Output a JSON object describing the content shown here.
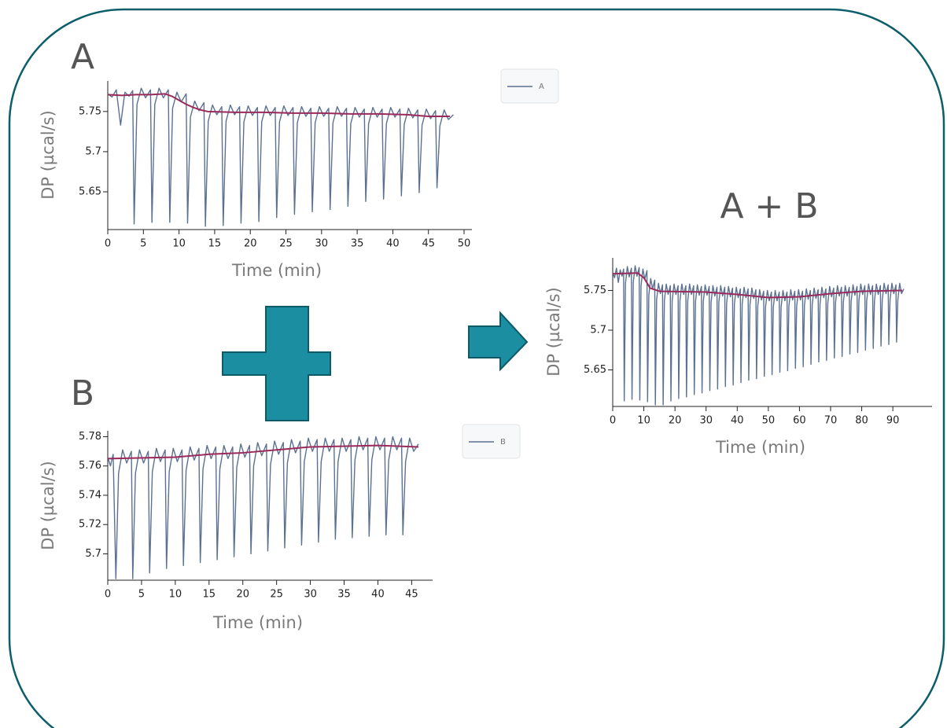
{
  "chart_data": [
    {
      "type": "line",
      "title": "A",
      "xlabel": "Time (min)",
      "ylabel": "DP (µcal/s)",
      "legend": "right",
      "xlim": [
        0,
        51.1
      ],
      "xticks": [
        0,
        5,
        10,
        15,
        20,
        25,
        30,
        35,
        40,
        45,
        50
      ],
      "ylim": [
        5.603,
        5.788
      ],
      "yticks": [
        5.65,
        5.7,
        5.75
      ],
      "series": [
        {
          "name": "A",
          "color": "#5b7191",
          "x": [
            0,
            0.6,
            1.2,
            1.8,
            2.4,
            3.0,
            3.5,
            3.7,
            4.1,
            4.7,
            5.3,
            6.0,
            6.2,
            6.6,
            7.2,
            7.8,
            8.5,
            8.7,
            9.1,
            9.7,
            10.3,
            11.0,
            11.2,
            11.6,
            12.2,
            12.8,
            13.5,
            13.7,
            14.1,
            14.7,
            15.3,
            16.0,
            16.2,
            16.6,
            17.2,
            17.8,
            18.5,
            18.7,
            19.1,
            19.7,
            20.3,
            21.0,
            21.2,
            21.6,
            22.2,
            22.8,
            23.5,
            23.7,
            24.1,
            24.7,
            25.3,
            26.0,
            26.2,
            26.6,
            27.2,
            27.8,
            28.5,
            28.7,
            29.1,
            29.7,
            30.3,
            31.0,
            31.2,
            31.6,
            32.2,
            32.8,
            33.5,
            33.7,
            34.1,
            34.7,
            35.3,
            36.0,
            36.2,
            36.6,
            37.2,
            37.8,
            38.5,
            38.7,
            39.1,
            39.7,
            40.3,
            41.0,
            41.2,
            41.6,
            42.2,
            42.8,
            43.5,
            43.7,
            44.1,
            44.7,
            45.3,
            46.0,
            46.2,
            46.6,
            47.2,
            47.8,
            48.5
          ],
          "values": [
            5.772,
            5.768,
            5.777,
            5.733,
            5.774,
            5.769,
            5.776,
            5.61,
            5.759,
            5.779,
            5.767,
            5.777,
            5.612,
            5.759,
            5.779,
            5.767,
            5.777,
            5.612,
            5.754,
            5.774,
            5.762,
            5.772,
            5.611,
            5.743,
            5.763,
            5.751,
            5.761,
            5.607,
            5.738,
            5.758,
            5.746,
            5.756,
            5.608,
            5.738,
            5.758,
            5.746,
            5.756,
            5.611,
            5.737,
            5.757,
            5.745,
            5.755,
            5.613,
            5.737,
            5.757,
            5.745,
            5.755,
            5.618,
            5.737,
            5.757,
            5.745,
            5.755,
            5.622,
            5.736,
            5.756,
            5.744,
            5.754,
            5.625,
            5.736,
            5.756,
            5.744,
            5.754,
            5.628,
            5.736,
            5.756,
            5.744,
            5.754,
            5.632,
            5.735,
            5.755,
            5.743,
            5.753,
            5.638,
            5.735,
            5.755,
            5.743,
            5.753,
            5.641,
            5.735,
            5.755,
            5.743,
            5.753,
            5.645,
            5.734,
            5.754,
            5.742,
            5.752,
            5.649,
            5.733,
            5.753,
            5.741,
            5.751,
            5.655,
            5.732,
            5.752,
            5.74,
            5.746
          ]
        },
        {
          "color": "#9b2a5c",
          "x": [
            0,
            2,
            4,
            6,
            8,
            9,
            10,
            11,
            12,
            13,
            14,
            18,
            22,
            26,
            30,
            34,
            38,
            42,
            45,
            48
          ],
          "values": [
            5.771,
            5.77,
            5.771,
            5.771,
            5.772,
            5.769,
            5.764,
            5.759,
            5.755,
            5.752,
            5.75,
            5.749,
            5.749,
            5.748,
            5.748,
            5.747,
            5.747,
            5.746,
            5.744,
            5.744
          ]
        }
      ]
    },
    {
      "type": "line",
      "title": "B",
      "xlabel": "Time (min)",
      "ylabel": "DP (µcal/s)",
      "legend": "right",
      "xlim": [
        0,
        48.1
      ],
      "xticks": [
        0,
        5,
        10,
        15,
        20,
        25,
        30,
        35,
        40,
        45
      ],
      "ylim": [
        5.682,
        5.784
      ],
      "yticks": [
        5.7,
        5.72,
        5.74,
        5.76,
        5.78
      ],
      "series": [
        {
          "name": "B",
          "color": "#5b7191",
          "x": [
            0,
            0.4,
            0.8,
            1.2,
            1.6,
            2.2,
            2.8,
            3.5,
            3.7,
            4.1,
            4.7,
            5.3,
            6.0,
            6.2,
            6.6,
            7.2,
            7.8,
            8.5,
            8.7,
            9.1,
            9.7,
            10.3,
            11.0,
            11.2,
            11.6,
            12.2,
            12.8,
            13.5,
            13.7,
            14.1,
            14.7,
            15.3,
            16.0,
            16.2,
            16.6,
            17.2,
            17.8,
            18.5,
            18.7,
            19.1,
            19.7,
            20.3,
            21.0,
            21.2,
            21.6,
            22.2,
            22.8,
            23.5,
            23.7,
            24.1,
            24.7,
            25.3,
            26.0,
            26.2,
            26.6,
            27.2,
            27.8,
            28.5,
            28.7,
            29.1,
            29.7,
            30.3,
            31.0,
            31.2,
            31.6,
            32.2,
            32.8,
            33.5,
            33.7,
            34.1,
            34.7,
            35.3,
            36.0,
            36.2,
            36.6,
            37.2,
            37.8,
            38.5,
            38.7,
            39.1,
            39.7,
            40.3,
            41.0,
            41.2,
            41.6,
            42.2,
            42.8,
            43.5,
            43.7,
            44.1,
            44.7,
            45.3,
            46.0
          ],
          "values": [
            5.766,
            5.76,
            5.768,
            5.683,
            5.755,
            5.771,
            5.762,
            5.77,
            5.683,
            5.755,
            5.771,
            5.762,
            5.77,
            5.687,
            5.756,
            5.772,
            5.763,
            5.771,
            5.69,
            5.756,
            5.772,
            5.763,
            5.771,
            5.692,
            5.757,
            5.773,
            5.764,
            5.772,
            5.694,
            5.758,
            5.774,
            5.765,
            5.773,
            5.696,
            5.758,
            5.774,
            5.765,
            5.773,
            5.698,
            5.759,
            5.775,
            5.766,
            5.774,
            5.7,
            5.76,
            5.776,
            5.767,
            5.775,
            5.702,
            5.761,
            5.777,
            5.768,
            5.776,
            5.704,
            5.762,
            5.778,
            5.769,
            5.777,
            5.706,
            5.763,
            5.779,
            5.77,
            5.778,
            5.708,
            5.763,
            5.779,
            5.77,
            5.778,
            5.71,
            5.763,
            5.779,
            5.77,
            5.778,
            5.711,
            5.764,
            5.78,
            5.771,
            5.779,
            5.712,
            5.764,
            5.78,
            5.771,
            5.779,
            5.713,
            5.764,
            5.78,
            5.771,
            5.779,
            5.713,
            5.763,
            5.779,
            5.77,
            5.775
          ]
        },
        {
          "color": "#9b2a5c",
          "x": [
            0,
            10,
            15,
            20,
            25,
            30,
            40,
            46
          ],
          "values": [
            5.765,
            5.766,
            5.768,
            5.769,
            5.771,
            5.773,
            5.774,
            5.773
          ]
        }
      ]
    },
    {
      "type": "line",
      "title": "A + B",
      "xlabel": "Time (min)",
      "ylabel": "DP (µcal/s)",
      "xlim": [
        0,
        102.6
      ],
      "xticks": [
        0,
        10,
        20,
        30,
        40,
        50,
        60,
        70,
        80,
        90
      ],
      "ylim": [
        5.604,
        5.791
      ],
      "yticks": [
        5.65,
        5.7,
        5.75
      ],
      "series": [
        {
          "color": "#5b7191",
          "x": [
            0,
            0.6,
            1.2,
            1.8,
            2.4,
            3.0,
            3.5,
            3.7,
            4.1,
            4.7,
            5.3,
            6.0,
            6.2,
            6.6,
            7.2,
            7.8,
            8.5,
            8.7,
            9.1,
            9.7,
            10.3,
            11.0,
            11.2,
            11.6,
            12.2,
            12.8,
            13.5,
            13.7,
            14.1,
            14.7,
            15.3,
            16.0,
            16.2,
            16.6,
            17.2,
            17.8,
            18.5,
            18.7,
            19.1,
            19.7,
            20.3,
            21.0,
            21.2,
            21.6,
            22.2,
            22.8,
            23.5,
            23.7,
            24.1,
            24.7,
            25.3,
            26.0,
            26.2,
            26.6,
            27.2,
            27.8,
            28.5,
            28.7,
            29.1,
            29.7,
            30.3,
            31.0,
            31.2,
            31.6,
            32.2,
            32.8,
            33.5,
            33.7,
            34.1,
            34.7,
            35.3,
            36.0,
            36.2,
            36.6,
            37.2,
            37.8,
            38.5,
            38.7,
            39.1,
            39.7,
            40.3,
            41.0,
            41.2,
            41.6,
            42.2,
            42.8,
            43.5,
            43.7,
            44.1,
            44.7,
            45.3,
            46.0,
            46.2,
            46.6,
            47.2,
            47.8,
            48.5,
            48.7,
            49.1,
            49.7,
            50.3,
            51.0,
            51.2,
            51.6,
            52.2,
            52.8,
            53.5,
            53.7,
            54.1,
            54.7,
            55.3,
            56.0,
            56.2,
            56.6,
            57.2,
            57.8,
            58.5,
            58.7,
            59.1,
            59.7,
            60.3,
            61.0,
            61.2,
            61.6,
            62.2,
            62.8,
            63.5,
            63.7,
            64.1,
            64.7,
            65.3,
            66.0,
            66.2,
            66.6,
            67.2,
            67.8,
            68.5,
            68.7,
            69.1,
            69.7,
            70.3,
            71.0,
            71.2,
            71.6,
            72.2,
            72.8,
            73.5,
            73.7,
            74.1,
            74.7,
            75.3,
            76.0,
            76.2,
            76.6,
            77.2,
            77.8,
            78.5,
            78.7,
            79.1,
            79.7,
            80.3,
            81.0,
            81.2,
            81.6,
            82.2,
            82.8,
            83.5,
            83.7,
            84.1,
            84.7,
            85.3,
            86.0,
            86.2,
            86.6,
            87.2,
            87.8,
            88.5,
            88.7,
            89.1,
            89.7,
            90.3,
            91.0,
            91.2,
            91.6,
            92.2,
            92.8,
            93.5
          ],
          "values": [
            5.772,
            5.766,
            5.778,
            5.76,
            5.776,
            5.768,
            5.777,
            5.611,
            5.759,
            5.78,
            5.767,
            5.778,
            5.613,
            5.76,
            5.781,
            5.768,
            5.779,
            5.612,
            5.756,
            5.777,
            5.764,
            5.775,
            5.61,
            5.744,
            5.765,
            5.752,
            5.763,
            5.606,
            5.738,
            5.759,
            5.746,
            5.757,
            5.606,
            5.737,
            5.758,
            5.745,
            5.756,
            5.611,
            5.737,
            5.758,
            5.745,
            5.756,
            5.614,
            5.737,
            5.758,
            5.745,
            5.756,
            5.616,
            5.737,
            5.758,
            5.745,
            5.756,
            5.619,
            5.736,
            5.757,
            5.744,
            5.755,
            5.621,
            5.736,
            5.757,
            5.744,
            5.755,
            5.624,
            5.735,
            5.756,
            5.743,
            5.754,
            5.626,
            5.735,
            5.756,
            5.743,
            5.754,
            5.629,
            5.734,
            5.755,
            5.742,
            5.753,
            5.631,
            5.733,
            5.754,
            5.741,
            5.752,
            5.634,
            5.733,
            5.754,
            5.741,
            5.752,
            5.637,
            5.732,
            5.753,
            5.74,
            5.751,
            5.639,
            5.73,
            5.751,
            5.738,
            5.749,
            5.642,
            5.729,
            5.75,
            5.737,
            5.748,
            5.644,
            5.729,
            5.75,
            5.737,
            5.748,
            5.647,
            5.729,
            5.75,
            5.737,
            5.748,
            5.649,
            5.73,
            5.751,
            5.738,
            5.749,
            5.652,
            5.73,
            5.751,
            5.738,
            5.749,
            5.654,
            5.731,
            5.752,
            5.739,
            5.75,
            5.657,
            5.732,
            5.753,
            5.74,
            5.751,
            5.66,
            5.733,
            5.754,
            5.741,
            5.752,
            5.662,
            5.734,
            5.755,
            5.742,
            5.753,
            5.665,
            5.735,
            5.756,
            5.743,
            5.754,
            5.667,
            5.735,
            5.756,
            5.743,
            5.754,
            5.67,
            5.736,
            5.757,
            5.744,
            5.755,
            5.672,
            5.737,
            5.758,
            5.745,
            5.756,
            5.675,
            5.737,
            5.758,
            5.745,
            5.756,
            5.677,
            5.737,
            5.758,
            5.745,
            5.756,
            5.68,
            5.738,
            5.759,
            5.746,
            5.757,
            5.682,
            5.738,
            5.759,
            5.746,
            5.757,
            5.685,
            5.738,
            5.759,
            5.746,
            5.752
          ]
        },
        {
          "color": "#9b2a5c",
          "x": [
            0,
            8,
            10,
            12,
            15,
            30,
            40,
            50,
            60,
            70,
            80,
            93
          ],
          "values": [
            5.771,
            5.772,
            5.766,
            5.753,
            5.749,
            5.748,
            5.745,
            5.741,
            5.742,
            5.746,
            5.749,
            5.75
          ]
        }
      ]
    }
  ]
}
